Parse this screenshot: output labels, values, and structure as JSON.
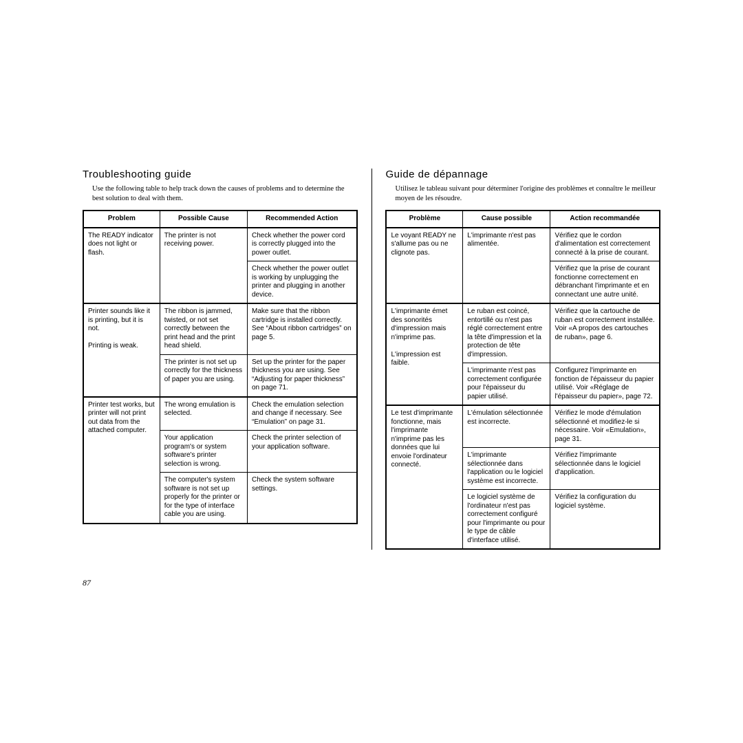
{
  "page_number": "87",
  "left": {
    "title": "Troubleshooting guide",
    "intro": "Use the following table to help track down the causes of problems and to determine the best solution to deal with them.",
    "headers": [
      "Problem",
      "Possible Cause",
      "Recommended Action"
    ],
    "groups": [
      {
        "problem": "The READY indicator does not light or flash.",
        "rows": [
          {
            "cause": "The printer is not receiving power.",
            "action": "Check whether the power cord is correctly plugged into the power outlet."
          },
          {
            "cause": "",
            "action": "Check whether the power outlet is working by unplugging the printer and plugging in another device."
          }
        ]
      },
      {
        "problem": "Printer sounds like it is printing, but it is not.\n\nPrinting is weak.",
        "rows": [
          {
            "cause": "The ribbon is jammed, twisted, or not set correctly between the print head and the print head shield.",
            "action": "Make sure that the ribbon cartridge is installed correctly. See “About ribbon cartridges” on page 5."
          },
          {
            "cause": "The printer is not set up correctly for the thickness of paper you are using.",
            "action": "Set up the printer for the paper thickness you are using. See “Adjusting for paper thickness” on page 71."
          }
        ]
      },
      {
        "problem": "Printer test works, but printer will not print out data from the attached computer.",
        "rows": [
          {
            "cause": "The wrong emulation is selected.",
            "action": "Check the emulation selection and change if necessary. See “Emulation” on page 31."
          },
          {
            "cause": "Your application program's or system software's printer selection is wrong.",
            "action": "Check the printer selection of your application software."
          },
          {
            "cause": "The computer's system software is not set up properly for the printer or for the type of interface cable you are using.",
            "action": "Check the system software settings."
          }
        ]
      }
    ]
  },
  "right": {
    "title": "Guide de dépannage",
    "intro": "Utilisez le tableau suivant pour déterminer l'origine des problèmes et connaître le meilleur moyen de les résoudre.",
    "headers": [
      "Problème",
      "Cause possible",
      "Action recommandée"
    ],
    "groups": [
      {
        "problem": "Le voyant READY ne s'allume pas ou ne clignote pas.",
        "rows": [
          {
            "cause": "L'imprimante n'est pas alimentée.",
            "action": "Vérifiez que le cordon d'alimentation est correctement connecté à la prise de courant."
          },
          {
            "cause": "",
            "action": "Vérifiez que la prise de courant fonctionne correctement en débranchant l'imprimante et en connectant une autre unité."
          }
        ]
      },
      {
        "problem": "L'imprimante émet des sonorités d'impression mais n'imprime pas.\n\nL'impression est faible.",
        "rows": [
          {
            "cause": "Le ruban est coincé, entortillé ou n'est pas réglé correctement entre la tête d'impression et la protection de tête d'impression.",
            "action": "Vérifiez que la cartouche de ruban est correctement installée. Voir «A propos des cartouches de ruban», page 6."
          },
          {
            "cause": "L'imprimante n'est pas correctement configurée pour l'épaisseur du papier utilisé.",
            "action": "Configurez l'imprimante en fonction de l'épaisseur du papier utilisé. Voir «Réglage de l'épaisseur du papier», page 72."
          }
        ]
      },
      {
        "problem": "Le test d'imprimante fonctionne, mais l'imprimante n'imprime pas les données que lui envoie l'ordinateur connecté.",
        "rows": [
          {
            "cause": "L'émulation sélectionnée est incorrecte.",
            "action": "Vérifiez le mode d'émulation sélectionné et modifiez-le si nécessaire. Voir «Emulation», page 31."
          },
          {
            "cause": "L'imprimante sélectionnée dans l'application ou le logiciel système est incorrecte.",
            "action": "Vérifiez l'imprimante sélectionnée dans le logiciel d'application."
          },
          {
            "cause": "Le logiciel système de l'ordinateur n'est pas correctement configuré pour l'imprimante ou pour le type de câble d'interface utilisé.",
            "action": "Vérifiez la configuration du logiciel système."
          }
        ]
      }
    ]
  }
}
